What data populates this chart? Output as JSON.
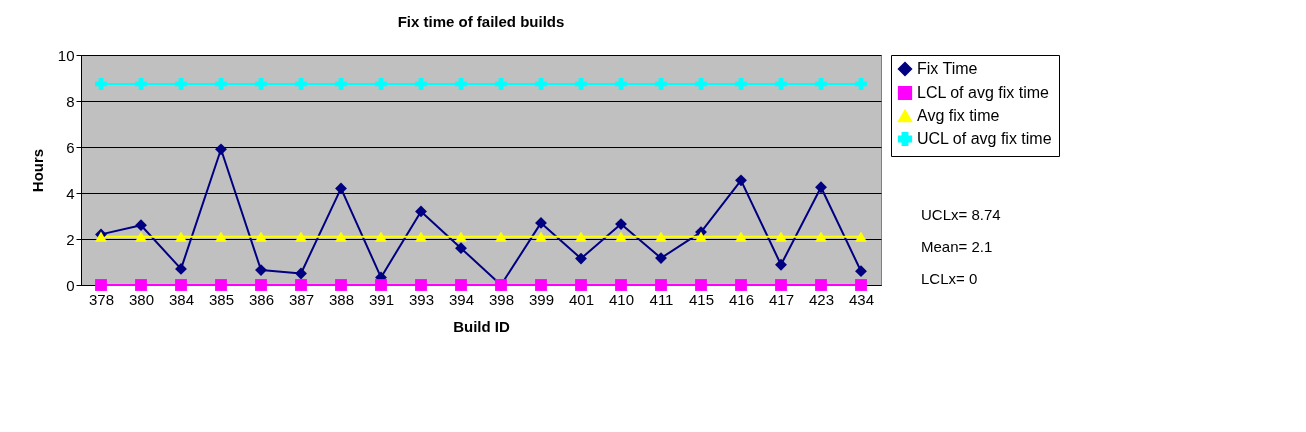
{
  "chart_data": {
    "type": "line",
    "title": "Fix time of failed builds",
    "xlabel": "Build ID",
    "ylabel": "Hours",
    "categories": [
      "378",
      "380",
      "384",
      "385",
      "386",
      "387",
      "388",
      "391",
      "393",
      "394",
      "398",
      "399",
      "401",
      "410",
      "411",
      "415",
      "416",
      "417",
      "423",
      "434"
    ],
    "series": [
      {
        "name": "Fix Time",
        "color": "#000080",
        "marker": "diamond",
        "values": [
          2.2,
          2.6,
          0.7,
          5.9,
          0.65,
          0.5,
          4.2,
          0.33,
          3.2,
          1.6,
          0,
          2.7,
          1.15,
          2.65,
          1.17,
          2.3,
          4.55,
          0.88,
          4.25,
          0.6
        ]
      },
      {
        "name": "LCL of avg fix time",
        "color": "#ff00ff",
        "marker": "square",
        "values": [
          0,
          0,
          0,
          0,
          0,
          0,
          0,
          0,
          0,
          0,
          0,
          0,
          0,
          0,
          0,
          0,
          0,
          0,
          0,
          0
        ]
      },
      {
        "name": "Avg fix time",
        "color": "#ffff00",
        "marker": "triangle",
        "values": [
          2.1,
          2.1,
          2.1,
          2.1,
          2.1,
          2.1,
          2.1,
          2.1,
          2.1,
          2.1,
          2.1,
          2.1,
          2.1,
          2.1,
          2.1,
          2.1,
          2.1,
          2.1,
          2.1,
          2.1
        ]
      },
      {
        "name": "UCL of avg fix time",
        "color": "#00ffff",
        "marker": "cross",
        "values": [
          8.74,
          8.74,
          8.74,
          8.74,
          8.74,
          8.74,
          8.74,
          8.74,
          8.74,
          8.74,
          8.74,
          8.74,
          8.74,
          8.74,
          8.74,
          8.74,
          8.74,
          8.74,
          8.74,
          8.74
        ]
      }
    ],
    "ylim": [
      0,
      10
    ],
    "yticks": [
      0,
      2,
      4,
      6,
      8,
      10
    ],
    "grid": "y",
    "legend": "right",
    "line_style": "solid",
    "annotations": [
      "UCLx= 8.74",
      "Mean= 2.1",
      "LCLx= 0"
    ]
  }
}
